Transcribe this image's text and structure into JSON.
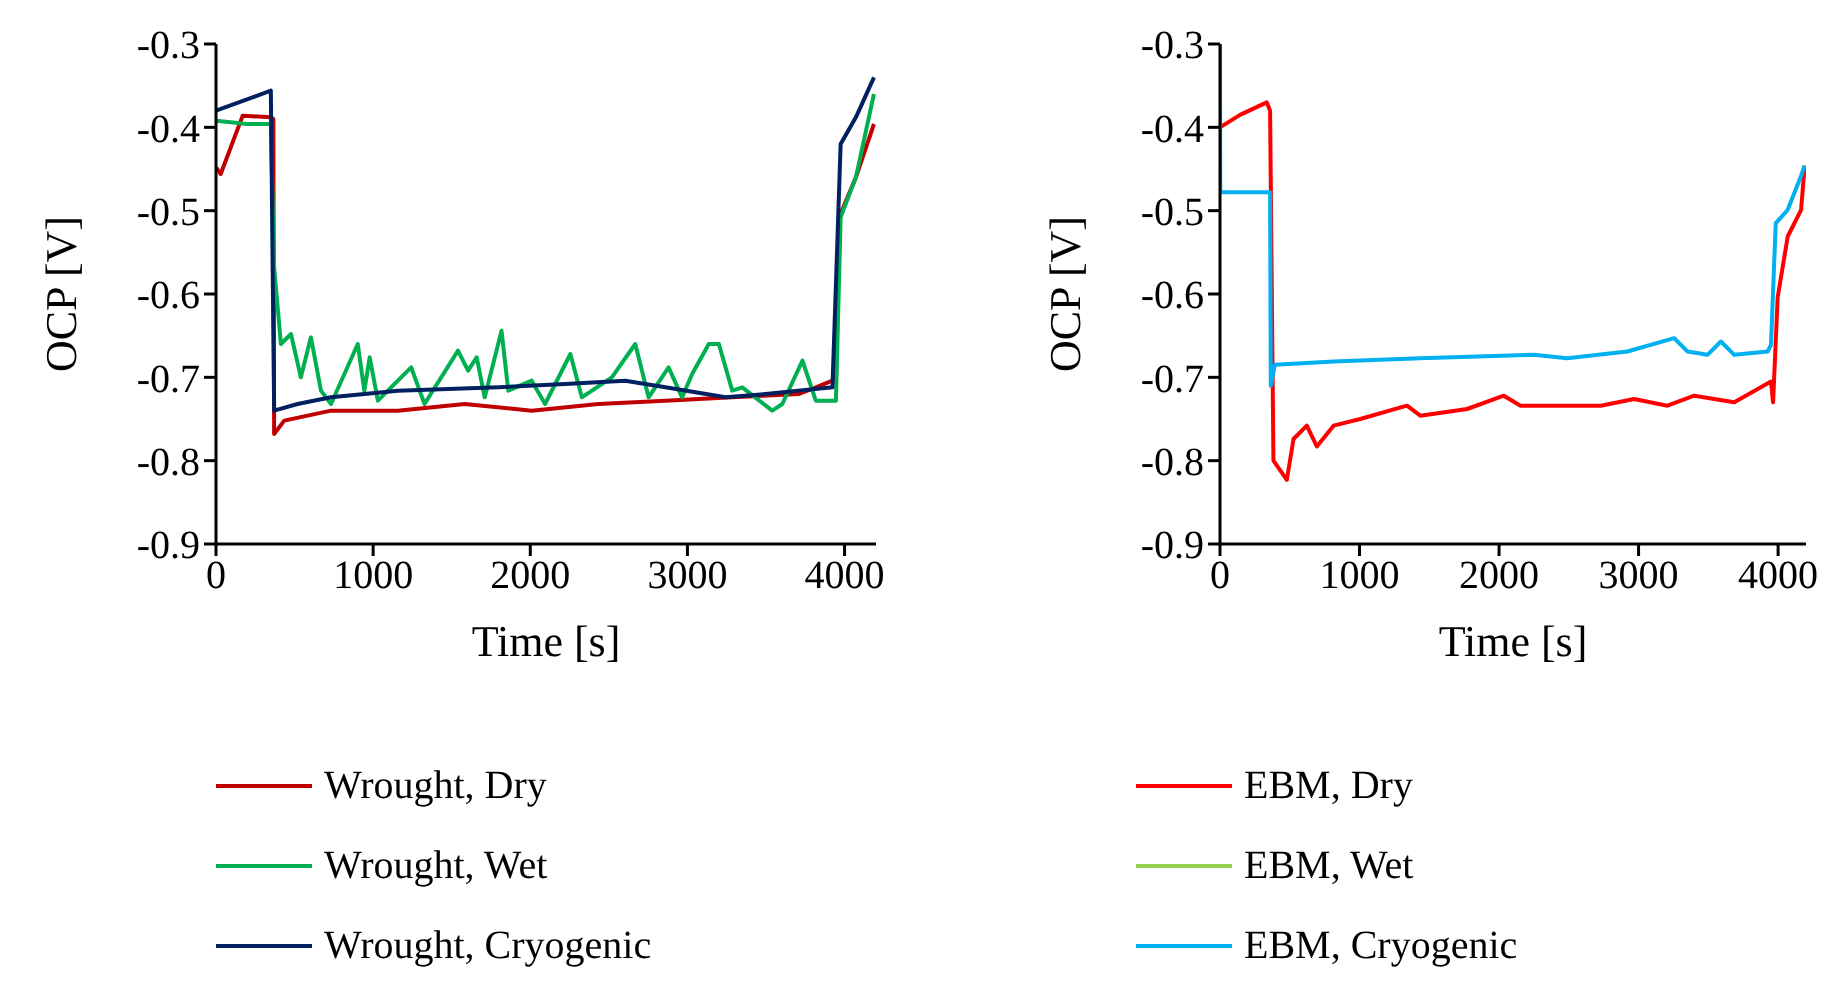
{
  "chart_data": [
    {
      "type": "line",
      "xlabel": "Time [s]",
      "ylabel": "OCP [V]",
      "xlim": [
        0,
        4200
      ],
      "xticks": [
        0,
        1000,
        2000,
        3000,
        4000
      ],
      "ylim": [
        -0.9,
        -0.3
      ],
      "yticks": [
        -0.9,
        -0.8,
        -0.7,
        -0.6,
        -0.5,
        -0.4,
        -0.3
      ],
      "legend": "bottom",
      "line_style": "solid",
      "marker": "none",
      "series": [
        {
          "name": "Wrought, Dry",
          "color": "#c00000",
          "x": [
            0,
            30,
            170,
            349,
            365,
            370,
            434,
            732,
            1157,
            1583,
            2009,
            2434,
            2860,
            3285,
            3711,
            3923,
            3945,
            3966,
            4072,
            4187
          ],
          "values": [
            -0.448,
            -0.456,
            -0.386,
            -0.388,
            -0.39,
            -0.768,
            -0.752,
            -0.74,
            -0.74,
            -0.732,
            -0.74,
            -0.732,
            -0.728,
            -0.724,
            -0.72,
            -0.704,
            -0.704,
            -0.508,
            -0.46,
            -0.396
          ]
        },
        {
          "name": "Wrought, Wet",
          "color": "#00b050",
          "x": [
            0,
            200,
            349,
            370,
            413,
            477,
            540,
            604,
            668,
            732,
            902,
            944,
            978,
            1030,
            1242,
            1327,
            1540,
            1604,
            1659,
            1710,
            1817,
            1860,
            2009,
            2094,
            2255,
            2328,
            2519,
            2668,
            2753,
            2880,
            2966,
            3030,
            3136,
            3200,
            3285,
            3349,
            3540,
            3604,
            3732,
            3817,
            3945,
            3975,
            4072,
            4187
          ],
          "values": [
            -0.392,
            -0.396,
            -0.396,
            -0.568,
            -0.66,
            -0.648,
            -0.7,
            -0.652,
            -0.716,
            -0.732,
            -0.66,
            -0.716,
            -0.676,
            -0.728,
            -0.688,
            -0.732,
            -0.668,
            -0.692,
            -0.676,
            -0.724,
            -0.644,
            -0.716,
            -0.704,
            -0.732,
            -0.672,
            -0.724,
            -0.7,
            -0.66,
            -0.724,
            -0.688,
            -0.724,
            -0.696,
            -0.66,
            -0.66,
            -0.716,
            -0.712,
            -0.74,
            -0.732,
            -0.68,
            -0.728,
            -0.728,
            -0.508,
            -0.46,
            -0.36
          ]
        },
        {
          "name": "Wrought, Cryogenic",
          "color": "#002060",
          "x": [
            0,
            349,
            370,
            519,
            732,
            1157,
            1796,
            2221,
            2604,
            2860,
            3243,
            3498,
            3923,
            3975,
            4072,
            4187
          ],
          "values": [
            -0.38,
            -0.356,
            -0.74,
            -0.732,
            -0.724,
            -0.716,
            -0.712,
            -0.708,
            -0.704,
            -0.712,
            -0.724,
            -0.72,
            -0.712,
            -0.42,
            -0.388,
            -0.34
          ]
        }
      ]
    },
    {
      "type": "line",
      "xlabel": "Time [s]",
      "ylabel": "OCP [V]",
      "xlim": [
        0,
        4200
      ],
      "xticks": [
        0,
        1000,
        2000,
        3000,
        4000
      ],
      "ylim": [
        -0.9,
        -0.3
      ],
      "yticks": [
        -0.9,
        -0.8,
        -0.7,
        -0.6,
        -0.5,
        -0.4,
        -0.3
      ],
      "legend": "bottom",
      "line_style": "solid",
      "marker": "none",
      "series": [
        {
          "name": "EBM, Dry",
          "color": "#ff0000",
          "x": [
            0,
            144,
            335,
            359,
            383,
            479,
            527,
            622,
            694,
            814,
            1005,
            1340,
            1436,
            1771,
            2034,
            2154,
            2729,
            2968,
            3207,
            3399,
            3686,
            3949,
            3964,
            3997,
            4069,
            4165,
            4190
          ],
          "values": [
            -0.4,
            -0.385,
            -0.37,
            -0.38,
            -0.8,
            -0.823,
            -0.774,
            -0.758,
            -0.783,
            -0.758,
            -0.75,
            -0.734,
            -0.746,
            -0.738,
            -0.722,
            -0.734,
            -0.734,
            -0.726,
            -0.734,
            -0.722,
            -0.73,
            -0.705,
            -0.73,
            -0.604,
            -0.531,
            -0.499,
            -0.446
          ]
        },
        {
          "name": "EBM, Wet",
          "color": "#92d050"
        },
        {
          "name": "EBM, Cryogenic",
          "color": "#00b0f0",
          "x": [
            0,
            2,
            359,
            364,
            393,
            814,
            1436,
            2250,
            2489,
            2920,
            3255,
            3351,
            3494,
            3590,
            3686,
            3925,
            3949,
            3983,
            4069,
            4165,
            4190
          ],
          "values": [
            -0.3,
            -0.478,
            -0.478,
            -0.71,
            -0.685,
            -0.681,
            -0.677,
            -0.673,
            -0.677,
            -0.669,
            -0.653,
            -0.669,
            -0.673,
            -0.657,
            -0.673,
            -0.669,
            -0.661,
            -0.515,
            -0.499,
            -0.458,
            -0.446
          ]
        }
      ]
    }
  ]
}
